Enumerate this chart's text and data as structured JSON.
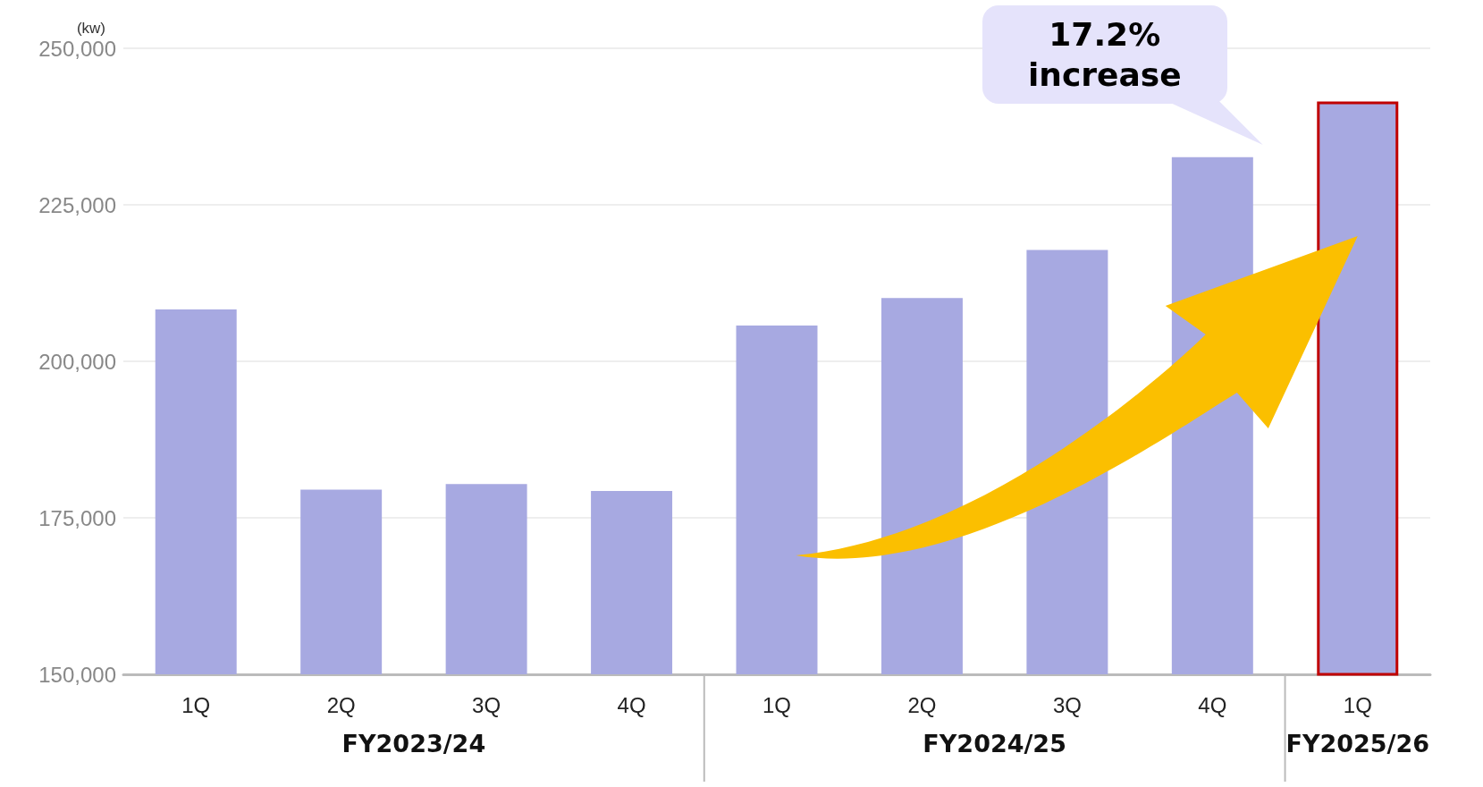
{
  "chart_data": {
    "type": "bar",
    "ylabel": "(kw)",
    "categories": [
      "1Q",
      "2Q",
      "3Q",
      "4Q",
      "1Q",
      "2Q",
      "3Q",
      "4Q",
      "1Q"
    ],
    "values": [
      208300,
      179500,
      180400,
      179300,
      205700,
      210100,
      217800,
      232600,
      241500
    ],
    "color": "#a7a9e1",
    "ylim": [
      150000,
      250000
    ],
    "yticks": [
      {
        "value": 150000,
        "label": "150,000"
      },
      {
        "value": 175000,
        "label": "175,000"
      },
      {
        "value": 200000,
        "label": "200,000"
      },
      {
        "value": 225000,
        "label": "225,000"
      },
      {
        "value": 250000,
        "label": "250,000"
      }
    ],
    "grid": "y",
    "annotations": [
      "17.2%\nincrease",
      "FY2023/24",
      "FY2024/25",
      "FY2025/26"
    ]
  }
}
